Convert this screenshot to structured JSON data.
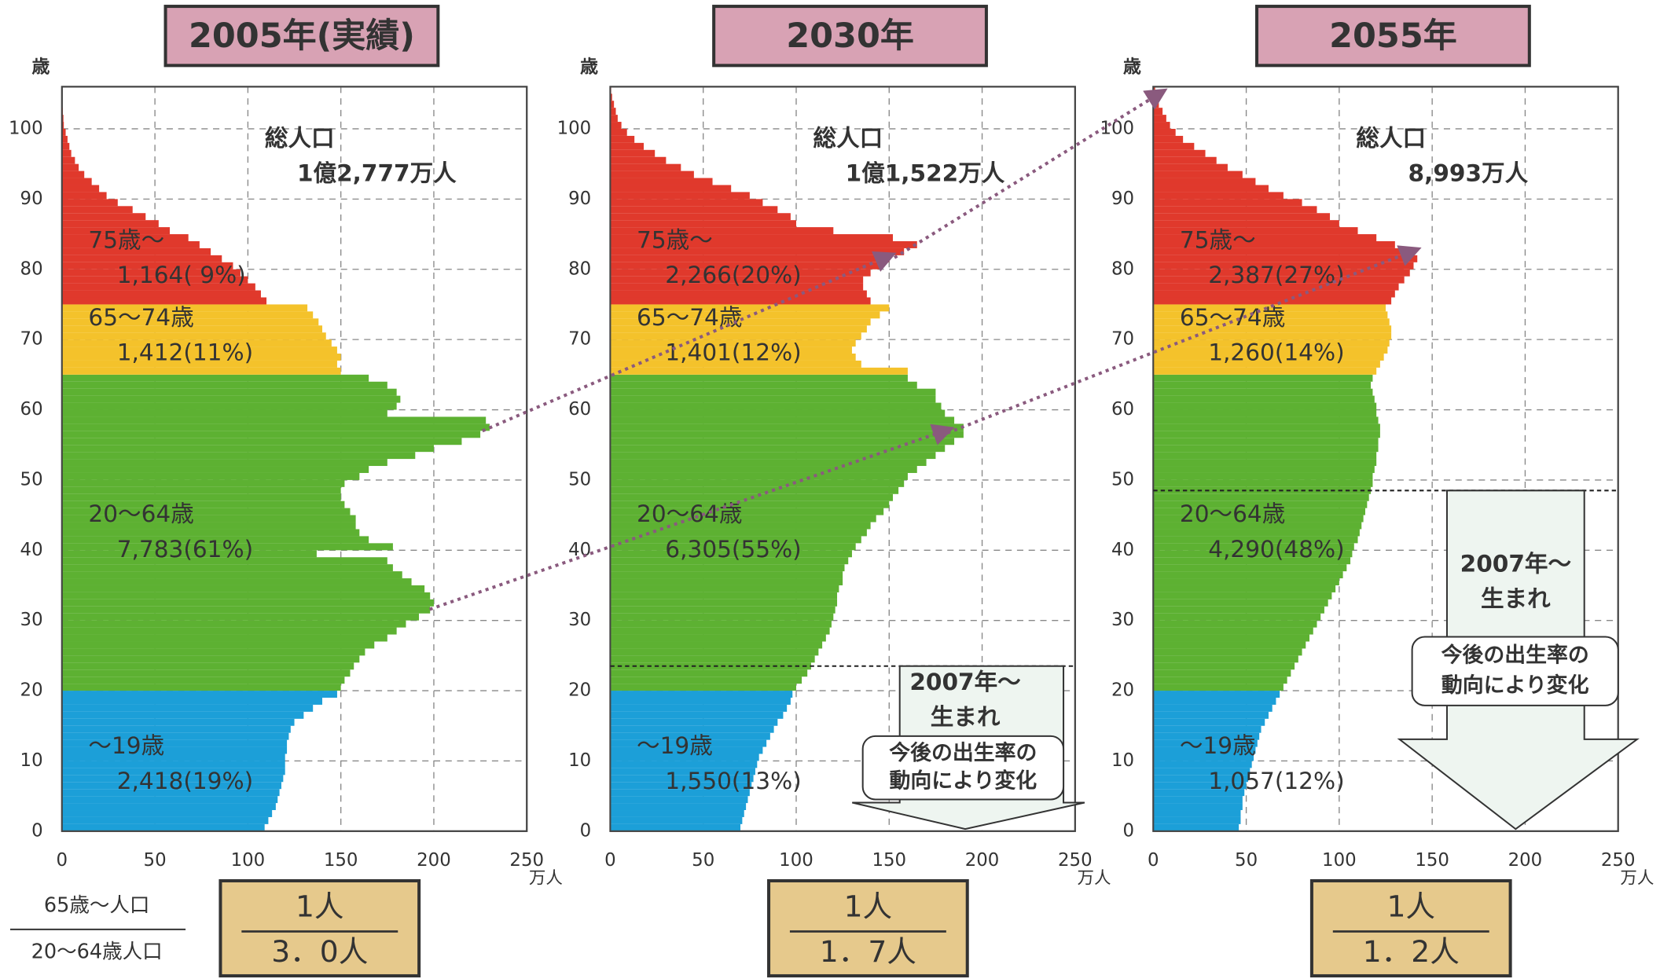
{
  "ratio_label": {
    "numerator": "65歳〜人口",
    "denominator": "20〜64歳人口"
  },
  "chart_data": [
    {
      "type": "bar",
      "orientation": "horizontal",
      "title": "2005年(実績)",
      "ylabel": "歳",
      "xlabel": "万人",
      "total_label": "総人口",
      "total": "1億2,777万人",
      "xlim": [
        0,
        250
      ],
      "xticks": [
        0,
        50,
        100,
        150,
        200,
        250
      ],
      "ylim": [
        0,
        106
      ],
      "yticks": [
        0,
        10,
        20,
        30,
        40,
        50,
        60,
        70,
        80,
        90,
        100
      ],
      "grid": true,
      "ages": [
        0,
        1,
        2,
        3,
        4,
        5,
        6,
        7,
        8,
        9,
        10,
        11,
        12,
        13,
        14,
        15,
        16,
        17,
        18,
        19,
        20,
        21,
        22,
        23,
        24,
        25,
        26,
        27,
        28,
        29,
        30,
        31,
        32,
        33,
        34,
        35,
        36,
        37,
        38,
        39,
        40,
        41,
        42,
        43,
        44,
        45,
        46,
        47,
        48,
        49,
        50,
        51,
        52,
        53,
        54,
        55,
        56,
        57,
        58,
        59,
        60,
        61,
        62,
        63,
        64,
        65,
        66,
        67,
        68,
        69,
        70,
        71,
        72,
        73,
        74,
        75,
        76,
        77,
        78,
        79,
        80,
        81,
        82,
        83,
        84,
        85,
        86,
        87,
        88,
        89,
        90,
        91,
        92,
        93,
        94,
        95,
        96,
        97,
        98,
        99,
        100,
        101,
        102,
        103,
        104,
        105
      ],
      "values": [
        109,
        111,
        113,
        115,
        116,
        117,
        118,
        119,
        120,
        120,
        120,
        121,
        121,
        122,
        123,
        125,
        130,
        135,
        140,
        148,
        150,
        152,
        155,
        157,
        160,
        163,
        168,
        175,
        180,
        185,
        192,
        198,
        200,
        198,
        195,
        188,
        183,
        178,
        175,
        137,
        178,
        165,
        160,
        158,
        158,
        155,
        152,
        150,
        150,
        152,
        160,
        165,
        175,
        190,
        200,
        215,
        225,
        230,
        228,
        175,
        180,
        182,
        180,
        175,
        165,
        150,
        148,
        150,
        148,
        145,
        142,
        140,
        138,
        135,
        132,
        110,
        107,
        104,
        100,
        96,
        92,
        86,
        80,
        74,
        68,
        58,
        52,
        45,
        38,
        30,
        24,
        20,
        16,
        12,
        9,
        7,
        5,
        4,
        3,
        2,
        1,
        0.8,
        0.5,
        0.3,
        0.2,
        0.1
      ],
      "bands": [
        {
          "name": "75歳〜",
          "from": 75,
          "to": 105,
          "color": "#e0392c",
          "label": "1,164( 9%)"
        },
        {
          "name": "65〜74歳",
          "from": 65,
          "to": 74,
          "color": "#f4c22b",
          "label": "1,412(11%)"
        },
        {
          "name": "20〜64歳",
          "from": 20,
          "to": 64,
          "color": "#5db132",
          "label": "7,783(61%)"
        },
        {
          "name": "〜19歳",
          "from": 0,
          "to": 19,
          "color": "#1c9fd8",
          "label": "2,418(19%)"
        }
      ],
      "ratio": {
        "top": "1人",
        "bottom": "3．0人"
      }
    },
    {
      "type": "bar",
      "orientation": "horizontal",
      "title": "2030年",
      "ylabel": "歳",
      "xlabel": "万人",
      "total_label": "総人口",
      "total": "1億1,522万人",
      "xlim": [
        0,
        250
      ],
      "xticks": [
        0,
        50,
        100,
        150,
        200,
        250
      ],
      "ylim": [
        0,
        106
      ],
      "yticks": [
        0,
        10,
        20,
        30,
        40,
        50,
        60,
        70,
        80,
        90,
        100
      ],
      "grid": true,
      "ages": [
        0,
        1,
        2,
        3,
        4,
        5,
        6,
        7,
        8,
        9,
        10,
        11,
        12,
        13,
        14,
        15,
        16,
        17,
        18,
        19,
        20,
        21,
        22,
        23,
        24,
        25,
        26,
        27,
        28,
        29,
        30,
        31,
        32,
        33,
        34,
        35,
        36,
        37,
        38,
        39,
        40,
        41,
        42,
        43,
        44,
        45,
        46,
        47,
        48,
        49,
        50,
        51,
        52,
        53,
        54,
        55,
        56,
        57,
        58,
        59,
        60,
        61,
        62,
        63,
        64,
        65,
        66,
        67,
        68,
        69,
        70,
        71,
        72,
        73,
        74,
        75,
        76,
        77,
        78,
        79,
        80,
        81,
        82,
        83,
        84,
        85,
        86,
        87,
        88,
        89,
        90,
        91,
        92,
        93,
        94,
        95,
        96,
        97,
        98,
        99,
        100,
        101,
        102,
        103,
        104,
        105
      ],
      "values": [
        70,
        71,
        72,
        73,
        74,
        75,
        76,
        77,
        78,
        79,
        80,
        82,
        84,
        86,
        88,
        90,
        93,
        95,
        97,
        98,
        100,
        103,
        106,
        108,
        110,
        112,
        114,
        116,
        118,
        119,
        120,
        121,
        122,
        122,
        123,
        125,
        125,
        126,
        128,
        130,
        132,
        135,
        138,
        140,
        143,
        147,
        150,
        152,
        155,
        158,
        160,
        165,
        170,
        175,
        180,
        185,
        190,
        190,
        185,
        180,
        178,
        175,
        175,
        165,
        160,
        160,
        135,
        132,
        130,
        132,
        135,
        138,
        140,
        145,
        150,
        140,
        138,
        136,
        136,
        140,
        145,
        150,
        158,
        165,
        152,
        120,
        100,
        97,
        90,
        82,
        75,
        65,
        55,
        45,
        38,
        30,
        24,
        18,
        13,
        9,
        6,
        4,
        3,
        2,
        1,
        0.5
      ],
      "bands": [
        {
          "name": "75歳〜",
          "from": 75,
          "to": 105,
          "color": "#e0392c",
          "label": "2,266(20%)"
        },
        {
          "name": "65〜74歳",
          "from": 65,
          "to": 74,
          "color": "#f4c22b",
          "label": "1,401(12%)"
        },
        {
          "name": "20〜64歳",
          "from": 20,
          "to": 64,
          "color": "#5db132",
          "label": "6,305(55%)"
        },
        {
          "name": "〜19歳",
          "from": 0,
          "to": 19,
          "color": "#1c9fd8",
          "label": "1,550(13%)"
        }
      ],
      "cohort_line": 23.5,
      "note": {
        "title": [
          "2007年〜",
          "生まれ"
        ],
        "sub": [
          "今後の出生率の",
          "動向により変化"
        ]
      },
      "ratio": {
        "top": "1人",
        "bottom": "1．7人"
      }
    },
    {
      "type": "bar",
      "orientation": "horizontal",
      "title": "2055年",
      "ylabel": "歳",
      "xlabel": "万人",
      "total_label": "総人口",
      "total": "8,993万人",
      "xlim": [
        0,
        250
      ],
      "xticks": [
        0,
        50,
        100,
        150,
        200,
        250
      ],
      "ylim": [
        0,
        106
      ],
      "yticks": [
        0,
        10,
        20,
        30,
        40,
        50,
        60,
        70,
        80,
        90,
        100
      ],
      "grid": true,
      "ages": [
        0,
        1,
        2,
        3,
        4,
        5,
        6,
        7,
        8,
        9,
        10,
        11,
        12,
        13,
        14,
        15,
        16,
        17,
        18,
        19,
        20,
        21,
        22,
        23,
        24,
        25,
        26,
        27,
        28,
        29,
        30,
        31,
        32,
        33,
        34,
        35,
        36,
        37,
        38,
        39,
        40,
        41,
        42,
        43,
        44,
        45,
        46,
        47,
        48,
        49,
        50,
        51,
        52,
        53,
        54,
        55,
        56,
        57,
        58,
        59,
        60,
        61,
        62,
        63,
        64,
        65,
        66,
        67,
        68,
        69,
        70,
        71,
        72,
        73,
        74,
        75,
        76,
        77,
        78,
        79,
        80,
        81,
        82,
        83,
        84,
        85,
        86,
        87,
        88,
        89,
        90,
        91,
        92,
        93,
        94,
        95,
        96,
        97,
        98,
        99,
        100,
        101,
        102,
        103,
        104,
        105
      ],
      "values": [
        46,
        47,
        47,
        48,
        48,
        49,
        50,
        51,
        52,
        53,
        54,
        55,
        56,
        57,
        58,
        60,
        62,
        64,
        66,
        68,
        70,
        72,
        74,
        76,
        78,
        80,
        82,
        84,
        86,
        88,
        90,
        92,
        94,
        96,
        98,
        100,
        102,
        104,
        106,
        107,
        108,
        110,
        111,
        112,
        113,
        114,
        115,
        116,
        117,
        118,
        118,
        119,
        120,
        120,
        121,
        121,
        122,
        122,
        121,
        120,
        120,
        119,
        118,
        117,
        118,
        120,
        122,
        124,
        126,
        127,
        128,
        128,
        127,
        126,
        125,
        128,
        130,
        132,
        135,
        138,
        140,
        142,
        138,
        130,
        120,
        110,
        100,
        95,
        88,
        80,
        70,
        62,
        55,
        48,
        40,
        34,
        28,
        22,
        16,
        12,
        9,
        7,
        5,
        3,
        2,
        1
      ],
      "bands": [
        {
          "name": "75歳〜",
          "from": 75,
          "to": 105,
          "color": "#e0392c",
          "label": "2,387(27%)"
        },
        {
          "name": "65〜74歳",
          "from": 65,
          "to": 74,
          "color": "#f4c22b",
          "label": "1,260(14%)"
        },
        {
          "name": "20〜64歳",
          "from": 20,
          "to": 64,
          "color": "#5db132",
          "label": "4,290(48%)"
        },
        {
          "name": "〜19歳",
          "from": 0,
          "to": 19,
          "color": "#1c9fd8",
          "label": "1,057(12%)"
        }
      ],
      "cohort_line": 48.5,
      "note": {
        "title": [
          "2007年〜",
          "生まれ"
        ],
        "sub": [
          "今後の出生率の",
          "動向により変化"
        ]
      },
      "ratio": {
        "top": "1人",
        "bottom": "1．2人"
      }
    }
  ]
}
